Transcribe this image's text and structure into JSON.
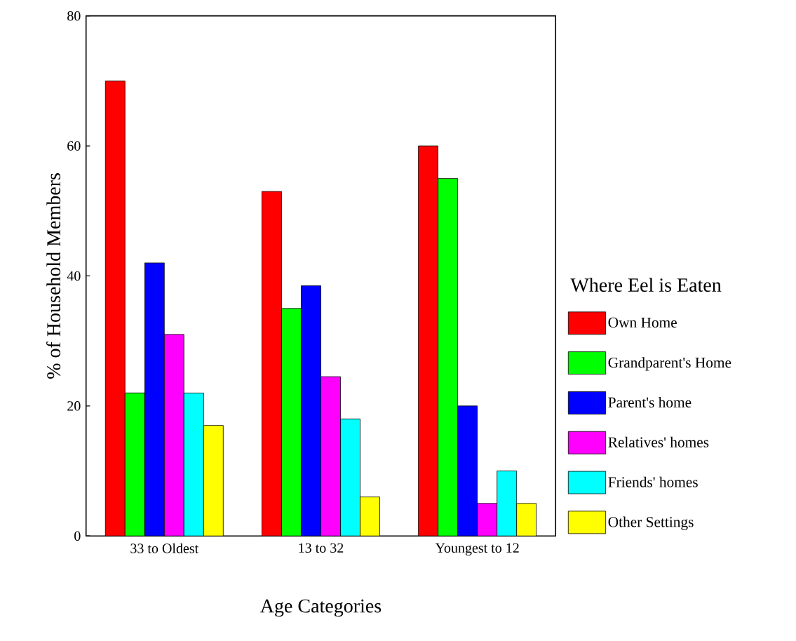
{
  "chart_data": {
    "type": "bar",
    "xlabel": "Age Categories",
    "ylabel": "% of Household Members",
    "legend_title": "Where Eel is Eaten",
    "categories": [
      "33 to Oldest",
      "13 to 32",
      "Youngest to 12"
    ],
    "series": [
      {
        "name": "Own Home",
        "color": "#ff0000",
        "values": [
          70,
          53,
          60
        ]
      },
      {
        "name": "Grandparent's Home",
        "color": "#00ff00",
        "values": [
          22,
          35,
          55
        ]
      },
      {
        "name": "Parent's home",
        "color": "#0000ff",
        "values": [
          42,
          38.5,
          20
        ]
      },
      {
        "name": "Relatives' homes",
        "color": "#ff00ff",
        "values": [
          31,
          24.5,
          5
        ]
      },
      {
        "name": "Friends' homes",
        "color": "#00ffff",
        "values": [
          22,
          18,
          10
        ]
      },
      {
        "name": "Other Settings",
        "color": "#ffff00",
        "values": [
          17,
          6,
          5
        ]
      }
    ],
    "ylim": [
      0,
      80
    ],
    "yticks": [
      0,
      20,
      40,
      60,
      80
    ],
    "grid": false,
    "legend": "right"
  }
}
